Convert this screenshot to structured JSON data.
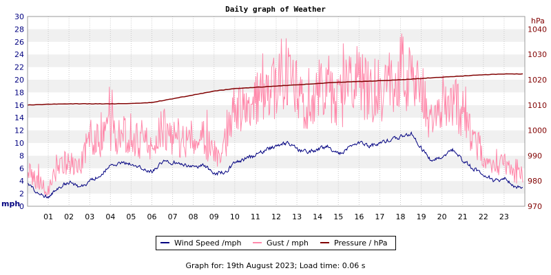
{
  "title": "Daily graph of Weather",
  "colors": {
    "wind": "#000080",
    "gust": "#ff88aa",
    "pressure": "#800000",
    "left_axis_text": "#000080",
    "right_axis_text": "#800000",
    "band": "#f0f0f0",
    "grid": "#c8c8c8"
  },
  "legend": {
    "wind": "Wind Speed /mph",
    "gust": "Gust / mph",
    "pressure": "Pressure / hPa"
  },
  "footer": "Graph for: 19th August 2023; Load time: 0.06 s",
  "chart_data": {
    "type": "line",
    "title": "Daily graph of Weather",
    "x_unit": "hour",
    "x_range": [
      0,
      24
    ],
    "x_tick_labels": [
      "01",
      "02",
      "03",
      "04",
      "05",
      "06",
      "07",
      "08",
      "09",
      "10",
      "11",
      "12",
      "13",
      "14",
      "15",
      "16",
      "17",
      "18",
      "19",
      "20",
      "21",
      "22",
      "23"
    ],
    "left_axis": {
      "label": "mph",
      "range": [
        0,
        30
      ],
      "ticks": [
        0,
        2,
        4,
        6,
        8,
        10,
        12,
        14,
        16,
        18,
        20,
        22,
        24,
        26,
        28,
        30
      ]
    },
    "right_axis": {
      "label": "hPa",
      "range": [
        970,
        1045
      ],
      "ticks": [
        970,
        980,
        990,
        1000,
        1010,
        1020,
        1030,
        1040
      ]
    },
    "grid": true,
    "legend_position": "bottom",
    "series": [
      {
        "name": "Wind Speed /mph",
        "axis": "left",
        "x": [
          0,
          0.5,
          1,
          1.5,
          2,
          2.5,
          3,
          3.5,
          4,
          4.5,
          5,
          5.5,
          6,
          6.5,
          7,
          7.5,
          8,
          8.5,
          9,
          9.5,
          10,
          10.5,
          11,
          11.5,
          12,
          12.5,
          13,
          13.5,
          14,
          14.5,
          15,
          15.5,
          16,
          16.5,
          17,
          17.5,
          18,
          18.5,
          19,
          19.5,
          20,
          20.5,
          21,
          21.5,
          22,
          22.5,
          23,
          23.5,
          23.9
        ],
        "y": [
          3.5,
          2,
          1.5,
          3,
          3.8,
          3,
          4,
          5,
          6.5,
          7,
          6.8,
          6,
          5.5,
          7,
          7,
          6.5,
          6,
          6.5,
          5,
          5.5,
          7,
          7.5,
          8,
          9,
          9.5,
          10,
          9,
          8.5,
          9,
          9.5,
          8,
          9.5,
          10,
          9.5,
          10,
          10.5,
          11,
          11.5,
          9,
          7,
          8,
          9,
          7,
          6,
          5,
          4,
          4.5,
          3,
          3
        ]
      },
      {
        "name": "Gust / mph",
        "axis": "left",
        "x": [
          0,
          0.5,
          1,
          1.5,
          2,
          2.5,
          3,
          3.5,
          4,
          4.5,
          5,
          5.5,
          6,
          6.5,
          7,
          7.5,
          8,
          8.5,
          9,
          9.5,
          10,
          10.5,
          11,
          11.5,
          12,
          12.5,
          13,
          13.5,
          14,
          14.5,
          15,
          15.5,
          16,
          16.5,
          17,
          17.5,
          18,
          18.5,
          19,
          19.5,
          20,
          20.5,
          21,
          21.5,
          22,
          22.5,
          23,
          23.5,
          23.9
        ],
        "y": [
          6,
          3.5,
          3,
          6,
          7,
          6,
          11,
          10,
          12,
          11,
          11.5,
          10,
          10,
          12.5,
          11,
          10,
          11,
          11,
          8,
          10,
          15,
          15,
          17,
          18,
          19,
          21,
          18,
          16,
          18,
          19,
          16,
          19,
          20,
          18,
          18.5,
          19,
          22,
          20,
          17,
          14,
          14,
          17,
          14,
          11,
          8,
          6,
          7,
          5,
          5
        ],
        "peaks": [
          {
            "x": 12.25,
            "y": 26.5
          },
          {
            "x": 18.1,
            "y": 24
          }
        ]
      },
      {
        "name": "Pressure / hPa",
        "axis": "right",
        "x": [
          0,
          1,
          2,
          3,
          4,
          5,
          6,
          7,
          8,
          9,
          10,
          11,
          12,
          13,
          14,
          15,
          16,
          17,
          18,
          19,
          20,
          21,
          22,
          23,
          23.9
        ],
        "y": [
          1010,
          1010.3,
          1010.5,
          1010.5,
          1010.5,
          1010.6,
          1011,
          1012.5,
          1014,
          1015.5,
          1016.5,
          1017,
          1017.5,
          1018,
          1018.5,
          1019,
          1019.3,
          1019.6,
          1020,
          1020.5,
          1021,
          1021.5,
          1022,
          1022.3,
          1022.3
        ]
      }
    ]
  }
}
